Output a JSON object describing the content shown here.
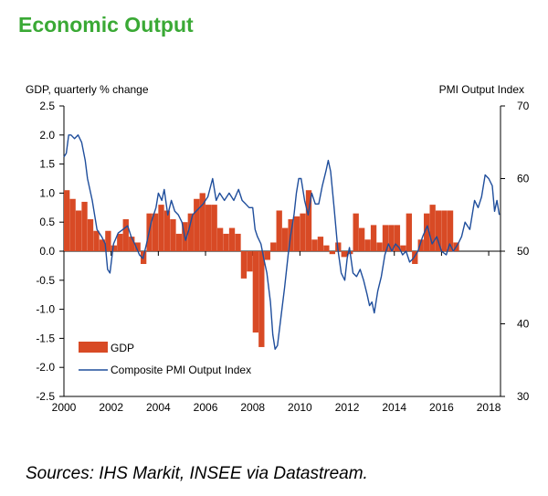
{
  "title": "Economic Output",
  "source": "Sources: IHS Markit, INSEE via Datastream.",
  "colors": {
    "title": "#3aa935",
    "gdp": "#d84a25",
    "pmi": "#1f4e9c"
  },
  "chart_data": {
    "type": "bar+line",
    "ylabel_left": "GDP, quarterly % change",
    "ylabel_right": "PMI Output  Index",
    "ylim_left": [
      -2.5,
      2.5
    ],
    "ylim_right": [
      30,
      70
    ],
    "yticks_left": [
      "2.5",
      "2.0",
      "1.5",
      "1.0",
      "0.5",
      "0.0",
      "-0.5",
      "-1.0",
      "-1.5",
      "-2.0",
      "-2.5"
    ],
    "yticks_right": [
      "70",
      "60",
      "50",
      "40",
      "30"
    ],
    "xticks": [
      "2000",
      "2002",
      "2004",
      "2006",
      "2008",
      "2010",
      "2012",
      "2014",
      "2016",
      "2018"
    ],
    "xlim": [
      2000,
      2018.5
    ],
    "legend": [
      "GDP",
      "Composite PMI Output Index"
    ],
    "gdp_series": {
      "name": "GDP",
      "start": 2000.0,
      "step": 0.25,
      "values": [
        1.05,
        0.9,
        0.7,
        0.85,
        0.55,
        0.35,
        0.2,
        0.35,
        0.1,
        0.3,
        0.55,
        0.25,
        0.15,
        -0.22,
        0.65,
        0.65,
        0.8,
        0.7,
        0.55,
        0.3,
        0.5,
        0.65,
        0.9,
        1.0,
        0.8,
        0.8,
        0.4,
        0.3,
        0.4,
        0.3,
        -0.47,
        -0.35,
        -1.4,
        -1.65,
        -0.15,
        0.15,
        0.7,
        0.4,
        0.55,
        0.6,
        0.65,
        1.05,
        0.2,
        0.25,
        0.1,
        -0.05,
        0.15,
        -0.1,
        -0.05,
        0.65,
        0.4,
        0.2,
        0.45,
        0.15,
        0.45,
        0.45,
        0.45,
        0.1,
        0.65,
        -0.22,
        0.2,
        0.65,
        0.8,
        0.7,
        0.7,
        0.7,
        0.15
      ]
    },
    "pmi_series": {
      "name": "Composite PMI Output Index",
      "points": [
        [
          2000.0,
          63
        ],
        [
          2000.1,
          63.5
        ],
        [
          2000.2,
          66
        ],
        [
          2000.3,
          66
        ],
        [
          2000.45,
          65.5
        ],
        [
          2000.6,
          66
        ],
        [
          2000.75,
          65
        ],
        [
          2000.9,
          62.5
        ],
        [
          2001.0,
          60
        ],
        [
          2001.2,
          57
        ],
        [
          2001.4,
          53
        ],
        [
          2001.6,
          52
        ],
        [
          2001.75,
          51
        ],
        [
          2001.85,
          47.5
        ],
        [
          2001.95,
          47
        ],
        [
          2002.1,
          51
        ],
        [
          2002.3,
          52.5
        ],
        [
          2002.5,
          53
        ],
        [
          2002.7,
          53.5
        ],
        [
          2002.85,
          52
        ],
        [
          2003.0,
          51
        ],
        [
          2003.2,
          49.5
        ],
        [
          2003.35,
          49
        ],
        [
          2003.5,
          51
        ],
        [
          2003.7,
          54
        ],
        [
          2003.9,
          56
        ],
        [
          2004.0,
          58
        ],
        [
          2004.15,
          57
        ],
        [
          2004.25,
          58.5
        ],
        [
          2004.4,
          55
        ],
        [
          2004.55,
          57
        ],
        [
          2004.7,
          55.5
        ],
        [
          2004.85,
          55
        ],
        [
          2005.0,
          54
        ],
        [
          2005.15,
          51.5
        ],
        [
          2005.3,
          53
        ],
        [
          2005.45,
          55
        ],
        [
          2005.6,
          55.5
        ],
        [
          2005.75,
          56
        ],
        [
          2005.9,
          56.5
        ],
        [
          2006.1,
          57.5
        ],
        [
          2006.3,
          60
        ],
        [
          2006.45,
          57
        ],
        [
          2006.6,
          58
        ],
        [
          2006.8,
          57
        ],
        [
          2007.0,
          58
        ],
        [
          2007.2,
          57
        ],
        [
          2007.4,
          58.5
        ],
        [
          2007.55,
          57
        ],
        [
          2007.7,
          56.5
        ],
        [
          2007.85,
          56
        ],
        [
          2008.0,
          56
        ],
        [
          2008.1,
          53
        ],
        [
          2008.2,
          52
        ],
        [
          2008.35,
          51
        ],
        [
          2008.5,
          48.5
        ],
        [
          2008.6,
          47
        ],
        [
          2008.75,
          43
        ],
        [
          2008.85,
          38.5
        ],
        [
          2008.95,
          36.5
        ],
        [
          2009.05,
          37
        ],
        [
          2009.2,
          41
        ],
        [
          2009.35,
          45
        ],
        [
          2009.5,
          49.5
        ],
        [
          2009.6,
          52
        ],
        [
          2009.75,
          55
        ],
        [
          2009.85,
          58
        ],
        [
          2009.95,
          60
        ],
        [
          2010.05,
          60
        ],
        [
          2010.2,
          57
        ],
        [
          2010.35,
          55
        ],
        [
          2010.5,
          58
        ],
        [
          2010.65,
          56.5
        ],
        [
          2010.8,
          56.5
        ],
        [
          2010.95,
          59
        ],
        [
          2011.1,
          61
        ],
        [
          2011.2,
          62.5
        ],
        [
          2011.3,
          61
        ],
        [
          2011.45,
          56
        ],
        [
          2011.6,
          50.5
        ],
        [
          2011.75,
          47
        ],
        [
          2011.9,
          46
        ],
        [
          2012.0,
          49
        ],
        [
          2012.1,
          50.5
        ],
        [
          2012.25,
          47
        ],
        [
          2012.4,
          46.5
        ],
        [
          2012.55,
          47.5
        ],
        [
          2012.7,
          46
        ],
        [
          2012.85,
          44
        ],
        [
          2012.95,
          42.5
        ],
        [
          2013.05,
          43
        ],
        [
          2013.15,
          41.5
        ],
        [
          2013.3,
          44.5
        ],
        [
          2013.45,
          46.5
        ],
        [
          2013.6,
          49.5
        ],
        [
          2013.75,
          51
        ],
        [
          2013.9,
          50
        ],
        [
          2014.05,
          51
        ],
        [
          2014.2,
          50.5
        ],
        [
          2014.35,
          49.5
        ],
        [
          2014.5,
          50
        ],
        [
          2014.65,
          48.5
        ],
        [
          2014.8,
          49
        ],
        [
          2015.0,
          50
        ],
        [
          2015.2,
          52
        ],
        [
          2015.4,
          53.5
        ],
        [
          2015.6,
          51
        ],
        [
          2015.8,
          52
        ],
        [
          2016.0,
          50
        ],
        [
          2016.2,
          49.5
        ],
        [
          2016.35,
          51
        ],
        [
          2016.5,
          50
        ],
        [
          2016.7,
          51
        ],
        [
          2016.85,
          52
        ],
        [
          2017.0,
          54
        ],
        [
          2017.2,
          53
        ],
        [
          2017.4,
          57
        ],
        [
          2017.55,
          56
        ],
        [
          2017.7,
          57.5
        ],
        [
          2017.85,
          60.5
        ],
        [
          2018.0,
          60
        ],
        [
          2018.15,
          59
        ],
        [
          2018.25,
          55.5
        ],
        [
          2018.35,
          57
        ],
        [
          2018.45,
          55
        ]
      ]
    }
  }
}
